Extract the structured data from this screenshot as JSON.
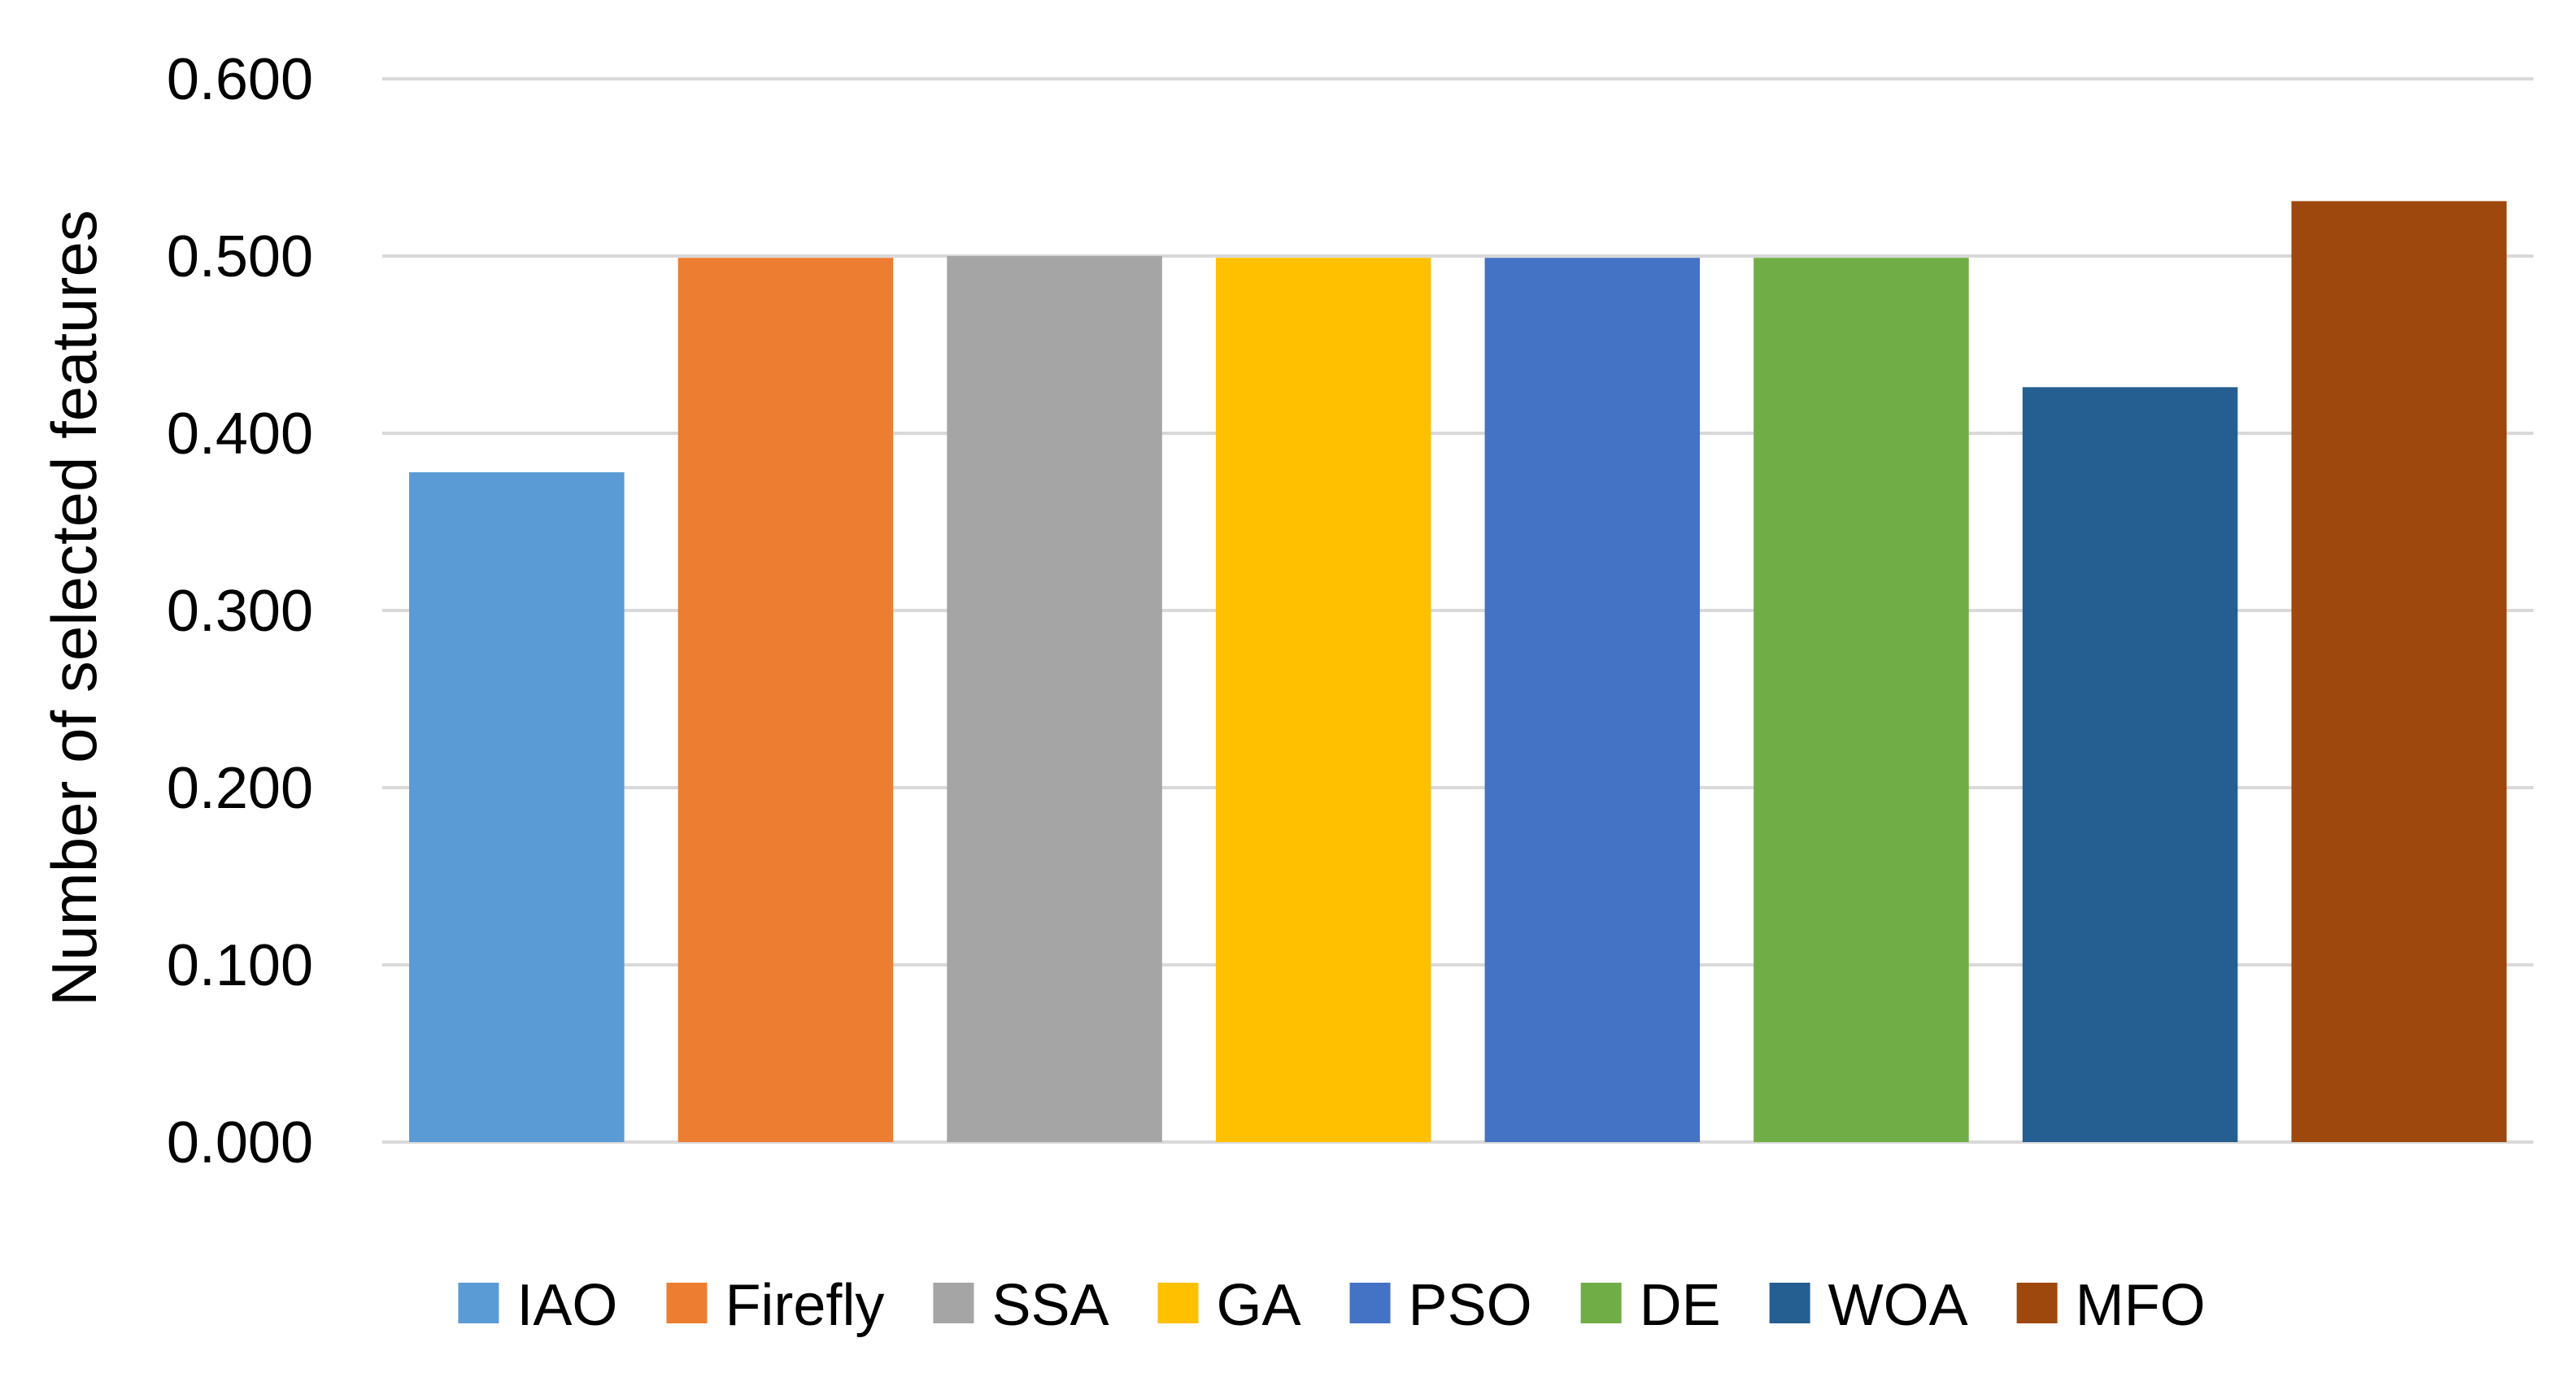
{
  "chart_data": {
    "type": "bar",
    "title": "",
    "xlabel": "",
    "ylabel": "Number of selected features",
    "ylim": [
      0,
      0.6
    ],
    "yticks": [
      "0.000",
      "0.100",
      "0.200",
      "0.300",
      "0.400",
      "0.500",
      "0.600"
    ],
    "grid": true,
    "legend_position": "bottom",
    "categories": [
      "IAO",
      "Firefly",
      "SSA",
      "GA",
      "PSO",
      "DE",
      "WOA",
      "MFO"
    ],
    "values": [
      0.378,
      0.499,
      0.5,
      0.499,
      0.499,
      0.499,
      0.426,
      0.531
    ],
    "colors": [
      "#5b9bd5",
      "#ed7d31",
      "#a5a5a5",
      "#ffc000",
      "#4472c4",
      "#70ad47",
      "#255e91",
      "#9e480e"
    ]
  }
}
